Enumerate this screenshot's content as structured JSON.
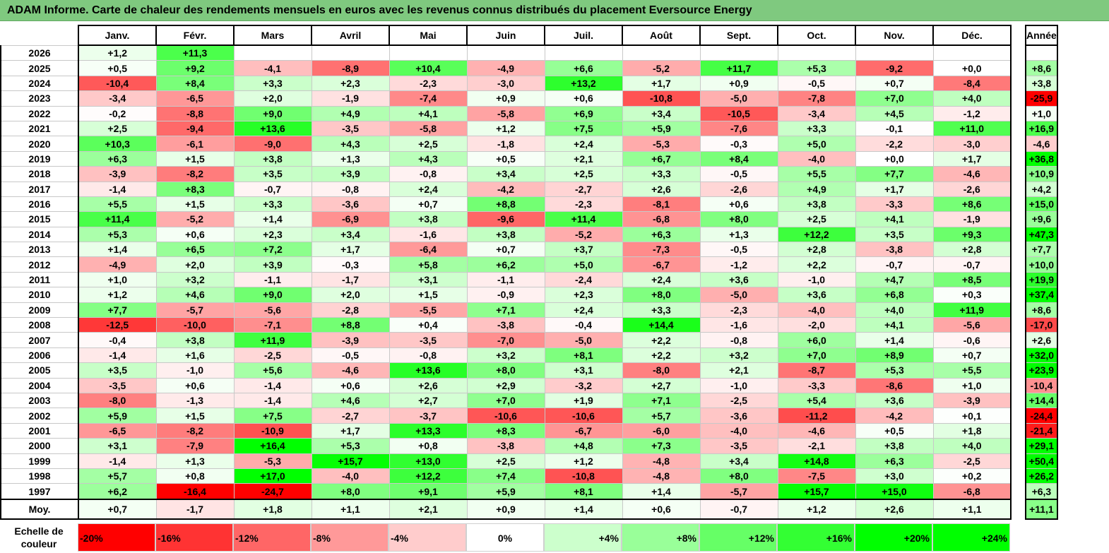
{
  "title": "ADAM Informe. Carte de chaleur des rendements mensuels en euros avec les revenus connus distribués du placement Eversource Energy",
  "chart_data": {
    "type": "heatmap",
    "columns": [
      "Janv.",
      "Févr.",
      "Mars",
      "Avril",
      "Mai",
      "Juin",
      "Juil.",
      "Août",
      "Sept.",
      "Oct.",
      "Nov.",
      "Déc."
    ],
    "year_column_label": "Année",
    "rows": [
      {
        "year": "2026",
        "values": [
          "+1,2",
          "+11,3",
          "",
          "",
          "",
          "",
          "",
          "",
          "",
          "",
          "",
          ""
        ],
        "annual": ""
      },
      {
        "year": "2025",
        "values": [
          "+0,5",
          "+9,2",
          "-4,1",
          "-8,9",
          "+10,4",
          "-4,9",
          "+6,6",
          "-5,2",
          "+11,7",
          "+5,3",
          "-9,2",
          "+0,0"
        ],
        "annual": "+8,6"
      },
      {
        "year": "2024",
        "values": [
          "-10,4",
          "+8,4",
          "+3,3",
          "+2,3",
          "-2,3",
          "-3,0",
          "+13,2",
          "+1,7",
          "+0,9",
          "-0,5",
          "+0,7",
          "-8,4"
        ],
        "annual": "+3,8"
      },
      {
        "year": "2023",
        "values": [
          "-3,4",
          "-6,5",
          "+2,0",
          "-1,9",
          "-7,4",
          "+0,9",
          "+0,6",
          "-10,8",
          "-5,0",
          "-7,8",
          "+7,0",
          "+4,0"
        ],
        "annual": "-25,9"
      },
      {
        "year": "2022",
        "values": [
          "-0,2",
          "-8,8",
          "+9,0",
          "+4,9",
          "+4,1",
          "-5,8",
          "+6,9",
          "+3,4",
          "-10,5",
          "-3,4",
          "+4,5",
          "-1,2"
        ],
        "annual": "+1,0"
      },
      {
        "year": "2021",
        "values": [
          "+2,5",
          "-9,4",
          "+13,6",
          "-3,5",
          "-5,8",
          "+1,2",
          "+7,5",
          "+5,9",
          "-7,6",
          "+3,3",
          "-0,1",
          "+11,0"
        ],
        "annual": "+16,9"
      },
      {
        "year": "2020",
        "values": [
          "+10,3",
          "-6,1",
          "-9,0",
          "+4,3",
          "+2,5",
          "-1,8",
          "+2,4",
          "-5,3",
          "-0,3",
          "+5,0",
          "-2,2",
          "-3,0"
        ],
        "annual": "-4,6"
      },
      {
        "year": "2019",
        "values": [
          "+6,3",
          "+1,5",
          "+3,8",
          "+1,3",
          "+4,3",
          "+0,5",
          "+2,1",
          "+6,7",
          "+8,4",
          "-4,0",
          "+0,0",
          "+1,7"
        ],
        "annual": "+36,8"
      },
      {
        "year": "2018",
        "values": [
          "-3,9",
          "-8,2",
          "+3,5",
          "+3,9",
          "-0,8",
          "+3,4",
          "+2,5",
          "+3,3",
          "-0,5",
          "+5,5",
          "+7,7",
          "-4,6"
        ],
        "annual": "+10,9"
      },
      {
        "year": "2017",
        "values": [
          "-1,4",
          "+8,3",
          "-0,7",
          "-0,8",
          "+2,4",
          "-4,2",
          "-2,7",
          "+2,6",
          "-2,6",
          "+4,9",
          "+1,7",
          "-2,6"
        ],
        "annual": "+4,2"
      },
      {
        "year": "2016",
        "values": [
          "+5,5",
          "+1,5",
          "+3,3",
          "-3,6",
          "+0,7",
          "+8,8",
          "-2,3",
          "-8,1",
          "+0,6",
          "+3,8",
          "-3,3",
          "+8,6"
        ],
        "annual": "+15,0"
      },
      {
        "year": "2015",
        "values": [
          "+11,4",
          "-5,2",
          "+1,4",
          "-6,9",
          "+3,8",
          "-9,6",
          "+11,4",
          "-6,8",
          "+8,0",
          "+2,5",
          "+4,1",
          "-1,9"
        ],
        "annual": "+9,6"
      },
      {
        "year": "2014",
        "values": [
          "+5,3",
          "+0,6",
          "+2,3",
          "+3,4",
          "-1,6",
          "+3,8",
          "-5,2",
          "+6,3",
          "+1,3",
          "+12,2",
          "+3,5",
          "+9,3"
        ],
        "annual": "+47,3"
      },
      {
        "year": "2013",
        "values": [
          "+1,4",
          "+6,5",
          "+7,2",
          "+1,7",
          "-6,4",
          "+0,7",
          "+3,7",
          "-7,3",
          "-0,5",
          "+2,8",
          "-3,8",
          "+2,8"
        ],
        "annual": "+7,7"
      },
      {
        "year": "2012",
        "values": [
          "-4,9",
          "+2,0",
          "+3,9",
          "-0,3",
          "+5,8",
          "+6,2",
          "+5,0",
          "-6,7",
          "-1,2",
          "+2,2",
          "-0,7",
          "-0,7"
        ],
        "annual": "+10,0"
      },
      {
        "year": "2011",
        "values": [
          "+1,0",
          "+3,2",
          "-1,1",
          "-1,7",
          "+3,1",
          "-1,1",
          "-2,4",
          "+2,4",
          "+3,6",
          "-1,0",
          "+4,7",
          "+8,5"
        ],
        "annual": "+19,9"
      },
      {
        "year": "2010",
        "values": [
          "+1,2",
          "+4,6",
          "+9,0",
          "+2,0",
          "+1,5",
          "-0,9",
          "+2,3",
          "+8,0",
          "-5,0",
          "+3,6",
          "+6,8",
          "+0,3"
        ],
        "annual": "+37,4"
      },
      {
        "year": "2009",
        "values": [
          "+7,7",
          "-5,7",
          "-5,6",
          "-2,8",
          "-5,5",
          "+7,1",
          "+2,4",
          "+3,3",
          "-2,3",
          "-4,0",
          "+4,0",
          "+11,9"
        ],
        "annual": "+8,6"
      },
      {
        "year": "2008",
        "values": [
          "-12,5",
          "-10,0",
          "-7,1",
          "+8,8",
          "+0,4",
          "-3,8",
          "-0,4",
          "+14,4",
          "-1,6",
          "-2,0",
          "+4,1",
          "-5,6"
        ],
        "annual": "-17,0"
      },
      {
        "year": "2007",
        "values": [
          "-0,4",
          "+3,8",
          "+11,9",
          "-3,9",
          "-3,5",
          "-7,0",
          "-5,0",
          "+2,2",
          "-0,8",
          "+6,0",
          "+1,4",
          "-0,6"
        ],
        "annual": "+2,6"
      },
      {
        "year": "2006",
        "values": [
          "-1,4",
          "+1,6",
          "-2,5",
          "-0,5",
          "-0,8",
          "+3,2",
          "+8,1",
          "+2,2",
          "+3,2",
          "+7,0",
          "+8,9",
          "+0,7"
        ],
        "annual": "+32,0"
      },
      {
        "year": "2005",
        "values": [
          "+3,5",
          "-1,0",
          "+5,6",
          "-4,6",
          "+13,6",
          "+8,0",
          "+3,1",
          "-8,0",
          "+2,1",
          "-8,7",
          "+5,3",
          "+5,5"
        ],
        "annual": "+23,9"
      },
      {
        "year": "2004",
        "values": [
          "-3,5",
          "+0,6",
          "-1,4",
          "+0,6",
          "+2,6",
          "+2,9",
          "-3,2",
          "+2,7",
          "-1,0",
          "-3,3",
          "-8,6",
          "+1,0"
        ],
        "annual": "-10,4"
      },
      {
        "year": "2003",
        "values": [
          "-8,0",
          "-1,3",
          "-1,4",
          "+4,6",
          "+2,7",
          "+7,0",
          "+1,9",
          "+7,1",
          "-2,5",
          "+5,4",
          "+3,6",
          "-3,9"
        ],
        "annual": "+14,4"
      },
      {
        "year": "2002",
        "values": [
          "+5,9",
          "+1,5",
          "+7,5",
          "-2,7",
          "-3,7",
          "-10,6",
          "-10,6",
          "+5,7",
          "-3,6",
          "-11,2",
          "-4,2",
          "+0,1"
        ],
        "annual": "-24,4"
      },
      {
        "year": "2001",
        "values": [
          "-6,5",
          "-8,2",
          "-10,9",
          "+1,7",
          "+13,3",
          "+8,3",
          "-6,7",
          "-6,0",
          "-4,0",
          "-4,6",
          "+0,5",
          "+1,8"
        ],
        "annual": "-21,4"
      },
      {
        "year": "2000",
        "values": [
          "+3,1",
          "-7,9",
          "+16,4",
          "+5,3",
          "+0,8",
          "-3,8",
          "+4,8",
          "+7,3",
          "-3,5",
          "-2,1",
          "+3,8",
          "+4,0"
        ],
        "annual": "+29,1"
      },
      {
        "year": "1999",
        "values": [
          "-1,4",
          "+1,3",
          "-5,3",
          "+15,7",
          "+13,0",
          "+2,5",
          "+1,2",
          "-4,8",
          "+3,4",
          "+14,8",
          "+6,3",
          "-2,5"
        ],
        "annual": "+50,4"
      },
      {
        "year": "1998",
        "values": [
          "+5,7",
          "+0,8",
          "+17,0",
          "-4,0",
          "+12,2",
          "+7,4",
          "-10,8",
          "-4,8",
          "+8,0",
          "-7,5",
          "+3,0",
          "+0,2"
        ],
        "annual": "+26,2"
      },
      {
        "year": "1997",
        "values": [
          "+6,2",
          "-16,4",
          "-24,7",
          "+8,0",
          "+9,1",
          "+5,9",
          "+8,1",
          "+1,4",
          "-5,7",
          "+15,7",
          "+15,0",
          "-6,8"
        ],
        "annual": "+6,3"
      }
    ],
    "average_row": {
      "label": "Moy.",
      "values": [
        "+0,7",
        "-1,7",
        "+1,8",
        "+1,1",
        "+2,1",
        "+0,9",
        "+1,4",
        "+0,6",
        "-0,7",
        "+1,2",
        "+2,6",
        "+1,1"
      ],
      "annual": "+11,1"
    },
    "scale": {
      "label": "Echelle de couleur",
      "steps": [
        {
          "text": "-20%",
          "value": -20,
          "align": "left"
        },
        {
          "text": "-16%",
          "value": -16,
          "align": "left"
        },
        {
          "text": "-12%",
          "value": -12,
          "align": "left"
        },
        {
          "text": "-8%",
          "value": -8,
          "align": "left"
        },
        {
          "text": "-4%",
          "value": -4,
          "align": "left"
        },
        {
          "text": "0%",
          "value": 0,
          "align": "center"
        },
        {
          "text": "+4%",
          "value": 4,
          "align": "right"
        },
        {
          "text": "+8%",
          "value": 8,
          "align": "right"
        },
        {
          "text": "+12%",
          "value": 12,
          "align": "right"
        },
        {
          "text": "+16%",
          "value": 16,
          "align": "right"
        },
        {
          "text": "+20%",
          "value": 20,
          "align": "right"
        },
        {
          "text": "+24%",
          "value": 24,
          "align": "right"
        }
      ]
    },
    "colors": {
      "negative_max": "#ff0000",
      "neutral": "#ffffff",
      "positive_max": "#00ff00",
      "title_bg": "#7fc97f"
    }
  }
}
